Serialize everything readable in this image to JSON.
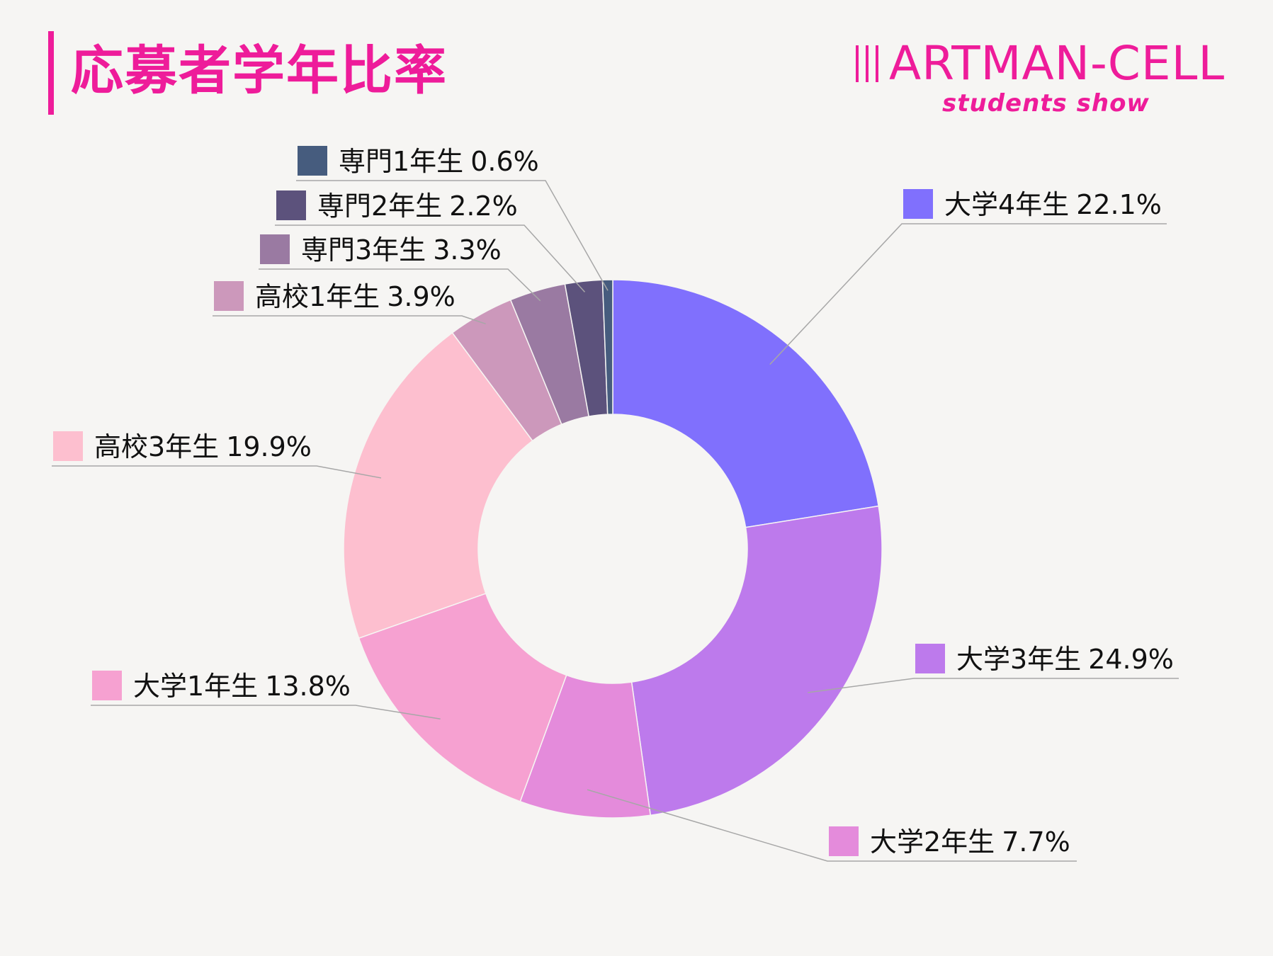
{
  "title": "応募者学年比率",
  "logo": {
    "main": "ARTMAN-CELL",
    "sub": "students show"
  },
  "colors": {
    "accent": "#ee1c9a",
    "background": "#f6f5f3"
  },
  "chart_data": {
    "type": "pie",
    "donut": true,
    "legend": "callout labels around the ring",
    "slices": [
      {
        "name": "大学4年生",
        "value": 22.1,
        "label": "22.1%",
        "color": "#8070fd"
      },
      {
        "name": "大学3年生",
        "value": 24.9,
        "label": "24.9%",
        "color": "#bd7aec"
      },
      {
        "name": "大学2年生",
        "value": 7.7,
        "label": "7.7%",
        "color": "#e48bdb"
      },
      {
        "name": "大学1年生",
        "value": 13.8,
        "label": "13.8%",
        "color": "#f6a1d1"
      },
      {
        "name": "高校3年生",
        "value": 19.9,
        "label": "19.9%",
        "color": "#fdbfcf"
      },
      {
        "name": "高校1年生",
        "value": 3.9,
        "label": "3.9%",
        "color": "#cc98bb"
      },
      {
        "name": "専門3年生",
        "value": 3.3,
        "label": "3.3%",
        "color": "#9a7aa2"
      },
      {
        "name": "専門2年生",
        "value": 2.2,
        "label": "2.2%",
        "color": "#5c527c"
      },
      {
        "name": "専門1年生",
        "value": 0.6,
        "label": "0.6%",
        "color": "#465c7e"
      }
    ]
  }
}
